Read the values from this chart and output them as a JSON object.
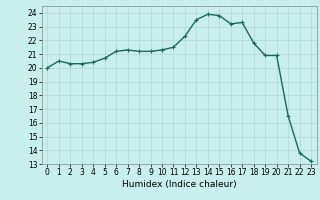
{
  "x": [
    0,
    1,
    2,
    3,
    4,
    5,
    6,
    7,
    8,
    9,
    10,
    11,
    12,
    13,
    14,
    15,
    16,
    17,
    18,
    19,
    20,
    21,
    22,
    23
  ],
  "y": [
    20.0,
    20.5,
    20.3,
    20.3,
    20.4,
    20.7,
    21.2,
    21.3,
    21.2,
    21.2,
    21.3,
    21.5,
    22.3,
    23.5,
    23.9,
    23.8,
    23.2,
    23.3,
    21.8,
    20.9,
    20.9,
    16.5,
    13.8,
    13.2
  ],
  "line_color": "#1a6b5a",
  "marker": "+",
  "marker_color": "#1a6b5a",
  "bg_color": "#c8eeee",
  "grid_color": "#b0d8d8",
  "xlabel": "Humidex (Indice chaleur)",
  "ylim": [
    13,
    24.5
  ],
  "yticks": [
    13,
    14,
    15,
    16,
    17,
    18,
    19,
    20,
    21,
    22,
    23,
    24
  ],
  "xlim": [
    -0.5,
    23.5
  ],
  "xticks": [
    0,
    1,
    2,
    3,
    4,
    5,
    6,
    7,
    8,
    9,
    10,
    11,
    12,
    13,
    14,
    15,
    16,
    17,
    18,
    19,
    20,
    21,
    22,
    23
  ],
  "xlabel_fontsize": 6.5,
  "tick_fontsize": 5.5,
  "linewidth": 1.0,
  "markersize": 3.5
}
